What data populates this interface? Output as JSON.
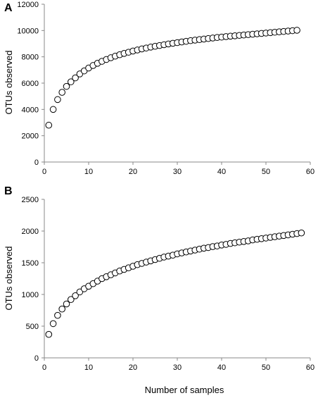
{
  "chart_data": [
    {
      "panel": "A",
      "type": "scatter",
      "ylabel": "OTUs observed",
      "xlim": [
        0,
        60
      ],
      "ylim": [
        0,
        12000
      ],
      "xticks": [
        0,
        10,
        20,
        30,
        40,
        50,
        60
      ],
      "yticks": [
        0,
        2000,
        4000,
        6000,
        8000,
        10000,
        12000
      ],
      "x": [
        1,
        2,
        3,
        4,
        5,
        6,
        7,
        8,
        9,
        10,
        11,
        12,
        13,
        14,
        15,
        16,
        17,
        18,
        19,
        20,
        21,
        22,
        23,
        24,
        25,
        26,
        27,
        28,
        29,
        30,
        31,
        32,
        33,
        34,
        35,
        36,
        37,
        38,
        39,
        40,
        41,
        42,
        43,
        44,
        45,
        46,
        47,
        48,
        49,
        50,
        51,
        52,
        53,
        54,
        55,
        56,
        57
      ],
      "y": [
        2800,
        4000,
        4750,
        5300,
        5750,
        6100,
        6400,
        6700,
        6930,
        7150,
        7340,
        7510,
        7660,
        7800,
        7930,
        8050,
        8160,
        8260,
        8350,
        8440,
        8520,
        8600,
        8670,
        8740,
        8800,
        8860,
        8920,
        8980,
        9030,
        9080,
        9130,
        9180,
        9230,
        9270,
        9310,
        9350,
        9390,
        9430,
        9470,
        9500,
        9540,
        9570,
        9600,
        9630,
        9660,
        9690,
        9720,
        9750,
        9780,
        9810,
        9840,
        9870,
        9900,
        9930,
        9960,
        9990,
        10020
      ]
    },
    {
      "panel": "B",
      "type": "scatter",
      "xlabel": "Number of samples",
      "ylabel": "OTUs observed",
      "xlim": [
        0,
        60
      ],
      "ylim": [
        0,
        2500
      ],
      "xticks": [
        0,
        10,
        20,
        30,
        40,
        50,
        60
      ],
      "yticks": [
        0,
        500,
        1000,
        1500,
        2000,
        2500
      ],
      "x": [
        1,
        2,
        3,
        4,
        5,
        6,
        7,
        8,
        9,
        10,
        11,
        12,
        13,
        14,
        15,
        16,
        17,
        18,
        19,
        20,
        21,
        22,
        23,
        24,
        25,
        26,
        27,
        28,
        29,
        30,
        31,
        32,
        33,
        34,
        35,
        36,
        37,
        38,
        39,
        40,
        41,
        42,
        43,
        44,
        45,
        46,
        47,
        48,
        49,
        50,
        51,
        52,
        53,
        54,
        55,
        56,
        57,
        58
      ],
      "y": [
        370,
        540,
        670,
        770,
        850,
        920,
        980,
        1040,
        1090,
        1130,
        1170,
        1210,
        1250,
        1280,
        1310,
        1340,
        1370,
        1395,
        1420,
        1445,
        1470,
        1490,
        1510,
        1530,
        1550,
        1570,
        1590,
        1605,
        1620,
        1640,
        1655,
        1670,
        1685,
        1700,
        1715,
        1730,
        1740,
        1755,
        1765,
        1780,
        1790,
        1805,
        1815,
        1825,
        1835,
        1845,
        1860,
        1870,
        1880,
        1890,
        1900,
        1910,
        1920,
        1930,
        1940,
        1950,
        1960,
        1970
      ]
    }
  ]
}
